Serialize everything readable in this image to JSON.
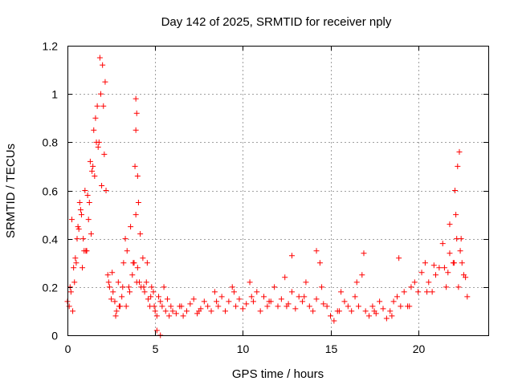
{
  "chart_data": {
    "type": "scatter",
    "title": "Day 142 of 2025, SRMTID for receiver nply",
    "xlabel": "GPS time / hours",
    "ylabel": "SRMTID / TECUs",
    "xlim": [
      0,
      24
    ],
    "ylim": [
      0,
      1.2
    ],
    "x_ticks": [
      0,
      5,
      10,
      15,
      20
    ],
    "x_tick_labels": [
      "0",
      "5",
      "10",
      "15",
      "20"
    ],
    "y_ticks": [
      0,
      0.2,
      0.4,
      0.6,
      0.8,
      1.0,
      1.2
    ],
    "y_tick_labels": [
      "0",
      "0.2",
      "0.4",
      "0.6",
      "0.8",
      "1",
      "1.2"
    ],
    "grid": true,
    "marker": "+",
    "color": "#ff0000",
    "series": [
      {
        "name": "SRMTID",
        "x": [
          0.0,
          0.1,
          0.2,
          0.3,
          0.4,
          0.5,
          0.6,
          0.7,
          0.8,
          0.9,
          1.0,
          1.1,
          1.2,
          1.3,
          1.4,
          1.5,
          1.6,
          1.7,
          1.8,
          1.9,
          2.0,
          2.1,
          2.2,
          2.3,
          2.4,
          2.5,
          2.6,
          2.7,
          2.8,
          2.9,
          3.0,
          3.1,
          3.2,
          3.3,
          3.4,
          3.5,
          3.6,
          3.7,
          3.8,
          3.9,
          4.0,
          4.1,
          4.2,
          4.3,
          4.4,
          4.5,
          4.6,
          4.7,
          4.8,
          4.9,
          5.0,
          5.1,
          5.2,
          5.3,
          5.4,
          5.5,
          5.6,
          5.7,
          5.8,
          5.9,
          6.0,
          6.2,
          6.4,
          6.6,
          6.8,
          7.0,
          7.2,
          7.4,
          7.6,
          7.8,
          8.0,
          8.2,
          8.4,
          8.6,
          8.8,
          9.0,
          9.2,
          9.4,
          9.6,
          9.8,
          10.0,
          10.2,
          10.4,
          10.6,
          10.8,
          11.0,
          11.2,
          11.4,
          11.6,
          11.8,
          12.0,
          12.2,
          12.4,
          12.6,
          12.8,
          13.0,
          13.2,
          13.4,
          13.6,
          13.8,
          14.0,
          14.2,
          14.4,
          14.6,
          14.8,
          15.0,
          15.2,
          15.4,
          15.6,
          15.8,
          16.0,
          16.2,
          16.4,
          16.6,
          16.8,
          17.0,
          17.2,
          17.4,
          17.6,
          17.8,
          18.0,
          18.2,
          18.4,
          18.6,
          18.8,
          19.0,
          19.2,
          19.4,
          19.6,
          19.8,
          20.0,
          20.2,
          20.4,
          20.6,
          20.8,
          21.0,
          21.2,
          21.4,
          21.6,
          21.8,
          22.0,
          22.1,
          22.2,
          22.3,
          22.4,
          22.5,
          22.6,
          22.7,
          22.8,
          0.15,
          0.35,
          0.55,
          0.75,
          0.95,
          1.15,
          1.35,
          1.55,
          1.75,
          1.95,
          2.05,
          2.15,
          1.85,
          1.65,
          1.45,
          1.25,
          1.05,
          0.85,
          0.65,
          0.45,
          0.25,
          2.35,
          2.55,
          2.75,
          2.95,
          3.15,
          3.35,
          3.55,
          3.75,
          3.95,
          4.15,
          4.35,
          4.55,
          4.75,
          4.95,
          3.9,
          3.9,
          3.85,
          4.0,
          4.05,
          3.95,
          6.5,
          7.5,
          8.5,
          9.5,
          10.5,
          11.5,
          12.5,
          13.5,
          14.5,
          15.5,
          16.5,
          17.5,
          18.5,
          19.5,
          20.5,
          21.5,
          22.25,
          22.35,
          22.15,
          22.45,
          22.05,
          21.8,
          21.7,
          14.2,
          12.8,
          16.9,
          18.9,
          20.9,
          5.3,
          5.1
        ],
        "y": [
          0.14,
          0.12,
          0.18,
          0.1,
          0.22,
          0.3,
          0.45,
          0.55,
          0.5,
          0.4,
          0.6,
          0.35,
          0.48,
          0.72,
          0.68,
          0.85,
          0.9,
          0.95,
          0.8,
          1.0,
          1.12,
          0.75,
          0.6,
          0.25,
          0.2,
          0.15,
          0.18,
          0.14,
          0.1,
          0.22,
          0.12,
          0.16,
          0.3,
          0.4,
          0.35,
          0.2,
          0.45,
          0.25,
          0.3,
          0.5,
          0.28,
          0.22,
          0.2,
          0.32,
          0.18,
          0.22,
          0.15,
          0.12,
          0.2,
          0.18,
          0.1,
          0.08,
          0.16,
          0.14,
          0.12,
          0.2,
          0.1,
          0.15,
          0.08,
          0.12,
          0.1,
          0.09,
          0.12,
          0.08,
          0.1,
          0.13,
          0.15,
          0.09,
          0.11,
          0.14,
          0.12,
          0.1,
          0.18,
          0.12,
          0.16,
          0.1,
          0.14,
          0.2,
          0.12,
          0.15,
          0.11,
          0.13,
          0.22,
          0.14,
          0.18,
          0.1,
          0.16,
          0.12,
          0.14,
          0.2,
          0.12,
          0.15,
          0.24,
          0.13,
          0.18,
          0.11,
          0.16,
          0.14,
          0.22,
          0.12,
          0.1,
          0.15,
          0.3,
          0.13,
          0.12,
          0.08,
          0.06,
          0.1,
          0.18,
          0.14,
          0.12,
          0.1,
          0.16,
          0.12,
          0.25,
          0.1,
          0.08,
          0.12,
          0.09,
          0.14,
          0.11,
          0.07,
          0.1,
          0.14,
          0.16,
          0.12,
          0.18,
          0.12,
          0.2,
          0.22,
          0.18,
          0.26,
          0.3,
          0.22,
          0.18,
          0.25,
          0.28,
          0.38,
          0.2,
          0.46,
          0.3,
          0.6,
          0.4,
          0.2,
          0.35,
          0.3,
          0.25,
          0.24,
          0.16,
          0.2,
          0.28,
          0.4,
          0.52,
          0.35,
          0.58,
          0.42,
          0.66,
          0.78,
          0.62,
          0.95,
          1.05,
          1.15,
          0.8,
          0.7,
          0.55,
          0.35,
          0.28,
          0.44,
          0.32,
          0.48,
          0.22,
          0.26,
          0.08,
          0.12,
          0.2,
          0.12,
          0.18,
          0.3,
          0.22,
          0.42,
          0.2,
          0.3,
          0.16,
          0.12,
          0.98,
          0.85,
          0.7,
          0.66,
          0.55,
          0.92,
          0.12,
          0.1,
          0.14,
          0.18,
          0.16,
          0.14,
          0.12,
          0.16,
          0.2,
          0.1,
          0.22,
          0.1,
          0.08,
          0.12,
          0.18,
          0.28,
          0.7,
          0.76,
          0.5,
          0.4,
          0.3,
          0.34,
          0.26,
          0.35,
          0.33,
          0.34,
          0.32,
          0.29,
          0.0,
          0.02
        ]
      }
    ]
  }
}
